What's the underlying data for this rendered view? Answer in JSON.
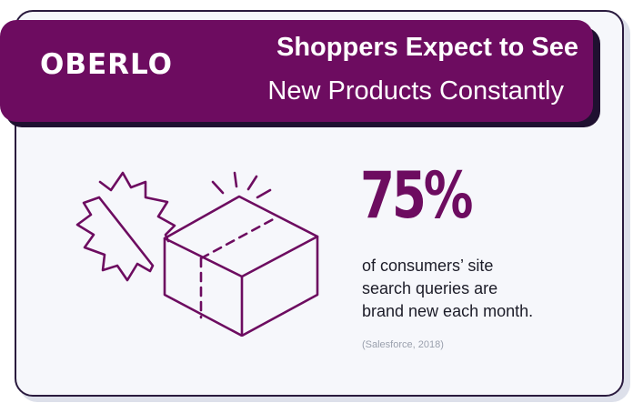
{
  "brand": {
    "logo_text": "OBERLO"
  },
  "header": {
    "title_line1": "Shoppers Expect to See",
    "title_line2": "New Products Constantly"
  },
  "stat": {
    "value": "75%",
    "description_lines": [
      "of consumers’ site",
      "search queries are",
      "brand new each month."
    ],
    "source": "(Salesforce, 2018)"
  },
  "illustration": {
    "icon": "new-product-box-icon"
  },
  "colors": {
    "brand_purple": "#6d0c60",
    "banner_shadow": "#1f1030",
    "card_background": "#f6f7fb",
    "text_dark": "#1c1c28",
    "source_gray": "#9aa0ad"
  }
}
